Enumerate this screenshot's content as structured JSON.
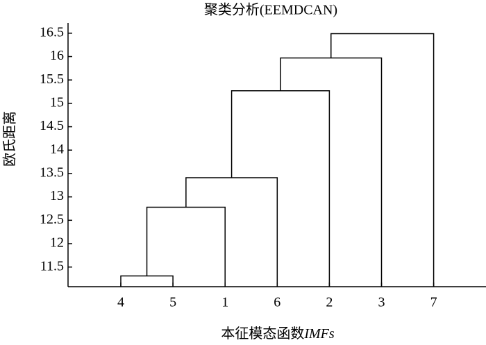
{
  "chart_data": {
    "type": "dendrogram",
    "title": "聚类分析(EEMDCAN)",
    "ylabel": "欧氏距离",
    "xlabel": [
      "本征模态函数",
      "IMFs"
    ],
    "categories": [
      "4",
      "5",
      "1",
      "6",
      "2",
      "3",
      "7"
    ],
    "merge_heights": [
      11.31,
      12.78,
      13.41,
      15.27,
      15.97,
      16.49
    ],
    "color": "#000000",
    "ylim": [
      11.08,
      16.72
    ],
    "yticks": [
      11.5,
      12,
      12.5,
      13,
      13.5,
      14,
      14.5,
      15,
      15.5,
      16,
      16.5
    ]
  }
}
